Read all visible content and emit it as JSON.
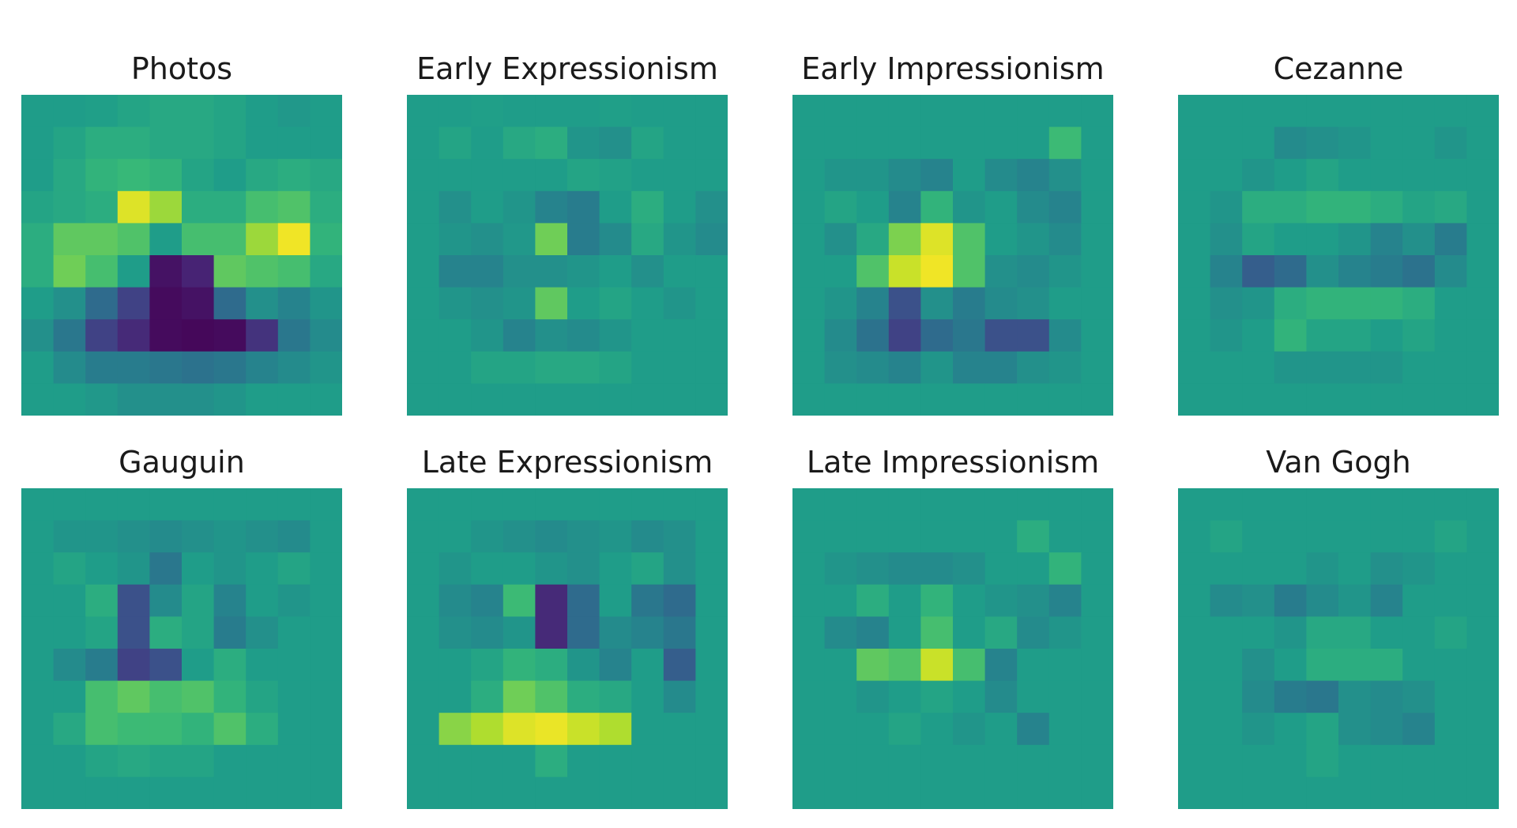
{
  "chart_data": [
    {
      "type": "heatmap",
      "title": "Photos",
      "colormap": "viridis",
      "vmin": 0,
      "vmax": 1,
      "axes": "off",
      "values": [
        [
          0.55,
          0.55,
          0.56,
          0.58,
          0.6,
          0.6,
          0.58,
          0.55,
          0.53,
          0.55
        ],
        [
          0.55,
          0.58,
          0.62,
          0.62,
          0.6,
          0.6,
          0.58,
          0.55,
          0.55,
          0.55
        ],
        [
          0.55,
          0.6,
          0.65,
          0.67,
          0.65,
          0.58,
          0.55,
          0.6,
          0.62,
          0.6
        ],
        [
          0.58,
          0.6,
          0.62,
          0.95,
          0.85,
          0.62,
          0.62,
          0.7,
          0.72,
          0.62
        ],
        [
          0.62,
          0.75,
          0.75,
          0.72,
          0.55,
          0.7,
          0.7,
          0.85,
          0.98,
          0.65
        ],
        [
          0.62,
          0.78,
          0.7,
          0.55,
          0.05,
          0.1,
          0.75,
          0.72,
          0.7,
          0.6
        ],
        [
          0.55,
          0.5,
          0.35,
          0.2,
          0.03,
          0.05,
          0.35,
          0.5,
          0.45,
          0.52
        ],
        [
          0.5,
          0.4,
          0.2,
          0.12,
          0.03,
          0.02,
          0.03,
          0.15,
          0.4,
          0.48
        ],
        [
          0.55,
          0.48,
          0.42,
          0.42,
          0.4,
          0.38,
          0.4,
          0.45,
          0.48,
          0.52
        ],
        [
          0.55,
          0.55,
          0.53,
          0.5,
          0.5,
          0.5,
          0.52,
          0.55,
          0.55,
          0.55
        ]
      ]
    },
    {
      "type": "heatmap",
      "title": "Early Expressionism",
      "colormap": "viridis",
      "vmin": 0,
      "vmax": 1,
      "axes": "off",
      "values": [
        [
          0.55,
          0.55,
          0.56,
          0.55,
          0.55,
          0.55,
          0.56,
          0.55,
          0.55,
          0.55
        ],
        [
          0.55,
          0.58,
          0.55,
          0.6,
          0.62,
          0.52,
          0.5,
          0.58,
          0.55,
          0.55
        ],
        [
          0.55,
          0.55,
          0.55,
          0.55,
          0.55,
          0.58,
          0.57,
          0.55,
          0.55,
          0.55
        ],
        [
          0.55,
          0.5,
          0.55,
          0.52,
          0.45,
          0.42,
          0.55,
          0.62,
          0.55,
          0.5
        ],
        [
          0.55,
          0.52,
          0.5,
          0.53,
          0.78,
          0.42,
          0.48,
          0.6,
          0.52,
          0.48
        ],
        [
          0.55,
          0.45,
          0.45,
          0.5,
          0.5,
          0.52,
          0.55,
          0.5,
          0.55,
          0.55
        ],
        [
          0.55,
          0.52,
          0.5,
          0.52,
          0.75,
          0.55,
          0.58,
          0.55,
          0.52,
          0.55
        ],
        [
          0.55,
          0.55,
          0.52,
          0.45,
          0.5,
          0.48,
          0.52,
          0.55,
          0.55,
          0.55
        ],
        [
          0.55,
          0.55,
          0.58,
          0.58,
          0.6,
          0.6,
          0.58,
          0.55,
          0.55,
          0.55
        ],
        [
          0.55,
          0.55,
          0.55,
          0.55,
          0.55,
          0.55,
          0.55,
          0.55,
          0.55,
          0.55
        ]
      ]
    },
    {
      "type": "heatmap",
      "title": "Early Impressionism",
      "colormap": "viridis",
      "vmin": 0,
      "vmax": 1,
      "axes": "off",
      "values": [
        [
          0.55,
          0.55,
          0.55,
          0.55,
          0.55,
          0.55,
          0.55,
          0.55,
          0.55,
          0.55
        ],
        [
          0.55,
          0.55,
          0.55,
          0.55,
          0.55,
          0.55,
          0.55,
          0.55,
          0.68,
          0.55
        ],
        [
          0.55,
          0.52,
          0.52,
          0.48,
          0.45,
          0.55,
          0.48,
          0.45,
          0.5,
          0.55
        ],
        [
          0.55,
          0.58,
          0.55,
          0.45,
          0.65,
          0.52,
          0.55,
          0.48,
          0.45,
          0.55
        ],
        [
          0.55,
          0.5,
          0.6,
          0.8,
          0.95,
          0.72,
          0.55,
          0.52,
          0.48,
          0.55
        ],
        [
          0.55,
          0.55,
          0.72,
          0.92,
          0.98,
          0.72,
          0.5,
          0.48,
          0.52,
          0.55
        ],
        [
          0.55,
          0.52,
          0.45,
          0.25,
          0.5,
          0.42,
          0.48,
          0.5,
          0.55,
          0.55
        ],
        [
          0.55,
          0.48,
          0.38,
          0.2,
          0.35,
          0.4,
          0.25,
          0.25,
          0.48,
          0.55
        ],
        [
          0.55,
          0.5,
          0.48,
          0.45,
          0.52,
          0.45,
          0.45,
          0.5,
          0.52,
          0.55
        ],
        [
          0.55,
          0.55,
          0.55,
          0.55,
          0.55,
          0.55,
          0.55,
          0.55,
          0.55,
          0.55
        ]
      ]
    },
    {
      "type": "heatmap",
      "title": "Cezanne",
      "colormap": "viridis",
      "vmin": 0,
      "vmax": 1,
      "axes": "off",
      "values": [
        [
          0.55,
          0.55,
          0.55,
          0.55,
          0.55,
          0.55,
          0.55,
          0.55,
          0.55,
          0.55
        ],
        [
          0.55,
          0.55,
          0.55,
          0.48,
          0.5,
          0.52,
          0.55,
          0.55,
          0.52,
          0.55
        ],
        [
          0.55,
          0.55,
          0.52,
          0.55,
          0.58,
          0.55,
          0.55,
          0.55,
          0.55,
          0.55
        ],
        [
          0.55,
          0.52,
          0.62,
          0.62,
          0.65,
          0.65,
          0.62,
          0.58,
          0.6,
          0.55
        ],
        [
          0.55,
          0.5,
          0.58,
          0.55,
          0.55,
          0.52,
          0.45,
          0.5,
          0.42,
          0.55
        ],
        [
          0.55,
          0.45,
          0.3,
          0.35,
          0.5,
          0.45,
          0.42,
          0.38,
          0.48,
          0.55
        ],
        [
          0.55,
          0.5,
          0.52,
          0.62,
          0.65,
          0.65,
          0.65,
          0.62,
          0.55,
          0.55
        ],
        [
          0.55,
          0.52,
          0.55,
          0.65,
          0.58,
          0.58,
          0.55,
          0.58,
          0.55,
          0.55
        ],
        [
          0.55,
          0.55,
          0.55,
          0.52,
          0.52,
          0.52,
          0.52,
          0.55,
          0.55,
          0.55
        ],
        [
          0.55,
          0.55,
          0.55,
          0.55,
          0.55,
          0.55,
          0.55,
          0.55,
          0.55,
          0.55
        ]
      ]
    },
    {
      "type": "heatmap",
      "title": "Gauguin",
      "colormap": "viridis",
      "vmin": 0,
      "vmax": 1,
      "axes": "off",
      "values": [
        [
          0.55,
          0.55,
          0.55,
          0.55,
          0.55,
          0.55,
          0.55,
          0.55,
          0.55,
          0.55
        ],
        [
          0.55,
          0.52,
          0.52,
          0.5,
          0.48,
          0.5,
          0.52,
          0.5,
          0.48,
          0.55
        ],
        [
          0.55,
          0.58,
          0.55,
          0.52,
          0.4,
          0.55,
          0.52,
          0.55,
          0.58,
          0.55
        ],
        [
          0.55,
          0.55,
          0.62,
          0.25,
          0.48,
          0.58,
          0.45,
          0.55,
          0.52,
          0.55
        ],
        [
          0.55,
          0.55,
          0.58,
          0.25,
          0.62,
          0.58,
          0.42,
          0.5,
          0.55,
          0.55
        ],
        [
          0.55,
          0.48,
          0.42,
          0.2,
          0.25,
          0.55,
          0.62,
          0.55,
          0.55,
          0.55
        ],
        [
          0.55,
          0.55,
          0.7,
          0.75,
          0.7,
          0.72,
          0.65,
          0.58,
          0.55,
          0.55
        ],
        [
          0.55,
          0.6,
          0.7,
          0.68,
          0.68,
          0.65,
          0.72,
          0.62,
          0.55,
          0.55
        ],
        [
          0.55,
          0.55,
          0.58,
          0.6,
          0.58,
          0.58,
          0.55,
          0.55,
          0.55,
          0.55
        ],
        [
          0.55,
          0.55,
          0.55,
          0.55,
          0.55,
          0.55,
          0.55,
          0.55,
          0.55,
          0.55
        ]
      ]
    },
    {
      "type": "heatmap",
      "title": "Late Expressionism",
      "colormap": "viridis",
      "vmin": 0,
      "vmax": 1,
      "axes": "off",
      "values": [
        [
          0.55,
          0.55,
          0.55,
          0.55,
          0.55,
          0.55,
          0.55,
          0.55,
          0.55,
          0.55
        ],
        [
          0.55,
          0.55,
          0.52,
          0.5,
          0.48,
          0.5,
          0.52,
          0.48,
          0.5,
          0.55
        ],
        [
          0.55,
          0.52,
          0.55,
          0.55,
          0.52,
          0.5,
          0.55,
          0.58,
          0.5,
          0.55
        ],
        [
          0.55,
          0.48,
          0.45,
          0.68,
          0.12,
          0.35,
          0.55,
          0.4,
          0.35,
          0.55
        ],
        [
          0.55,
          0.5,
          0.48,
          0.52,
          0.12,
          0.35,
          0.48,
          0.45,
          0.4,
          0.55
        ],
        [
          0.55,
          0.55,
          0.58,
          0.65,
          0.62,
          0.52,
          0.45,
          0.55,
          0.3,
          0.55
        ],
        [
          0.55,
          0.55,
          0.62,
          0.78,
          0.72,
          0.62,
          0.6,
          0.55,
          0.48,
          0.55
        ],
        [
          0.55,
          0.82,
          0.88,
          0.95,
          0.97,
          0.92,
          0.88,
          0.55,
          0.55,
          0.55
        ],
        [
          0.55,
          0.55,
          0.55,
          0.55,
          0.62,
          0.55,
          0.55,
          0.55,
          0.55,
          0.55
        ],
        [
          0.55,
          0.55,
          0.55,
          0.55,
          0.55,
          0.55,
          0.55,
          0.55,
          0.55,
          0.55
        ]
      ]
    },
    {
      "type": "heatmap",
      "title": "Late Impressionism",
      "colormap": "viridis",
      "vmin": 0,
      "vmax": 1,
      "axes": "off",
      "values": [
        [
          0.55,
          0.55,
          0.55,
          0.55,
          0.55,
          0.55,
          0.55,
          0.55,
          0.55,
          0.55
        ],
        [
          0.55,
          0.55,
          0.55,
          0.55,
          0.55,
          0.55,
          0.55,
          0.62,
          0.55,
          0.55
        ],
        [
          0.55,
          0.52,
          0.5,
          0.48,
          0.48,
          0.5,
          0.55,
          0.55,
          0.65,
          0.55
        ],
        [
          0.55,
          0.55,
          0.62,
          0.55,
          0.65,
          0.55,
          0.52,
          0.5,
          0.45,
          0.55
        ],
        [
          0.55,
          0.48,
          0.45,
          0.55,
          0.7,
          0.55,
          0.6,
          0.48,
          0.52,
          0.55
        ],
        [
          0.55,
          0.55,
          0.75,
          0.72,
          0.92,
          0.7,
          0.45,
          0.55,
          0.55,
          0.55
        ],
        [
          0.55,
          0.55,
          0.52,
          0.55,
          0.58,
          0.55,
          0.48,
          0.55,
          0.55,
          0.55
        ],
        [
          0.55,
          0.55,
          0.55,
          0.58,
          0.55,
          0.52,
          0.55,
          0.45,
          0.55,
          0.55
        ],
        [
          0.55,
          0.55,
          0.55,
          0.55,
          0.55,
          0.55,
          0.55,
          0.55,
          0.55,
          0.55
        ],
        [
          0.55,
          0.55,
          0.55,
          0.55,
          0.55,
          0.55,
          0.55,
          0.55,
          0.55,
          0.55
        ]
      ]
    },
    {
      "type": "heatmap",
      "title": "Van Gogh",
      "colormap": "viridis",
      "vmin": 0,
      "vmax": 1,
      "axes": "off",
      "values": [
        [
          0.55,
          0.55,
          0.55,
          0.55,
          0.55,
          0.55,
          0.55,
          0.55,
          0.55,
          0.55
        ],
        [
          0.55,
          0.58,
          0.55,
          0.55,
          0.55,
          0.55,
          0.55,
          0.55,
          0.58,
          0.55
        ],
        [
          0.55,
          0.55,
          0.55,
          0.55,
          0.52,
          0.55,
          0.5,
          0.52,
          0.55,
          0.55
        ],
        [
          0.55,
          0.48,
          0.5,
          0.42,
          0.48,
          0.52,
          0.45,
          0.55,
          0.55,
          0.55
        ],
        [
          0.55,
          0.55,
          0.55,
          0.52,
          0.6,
          0.6,
          0.55,
          0.55,
          0.58,
          0.55
        ],
        [
          0.55,
          0.55,
          0.5,
          0.55,
          0.62,
          0.62,
          0.62,
          0.55,
          0.55,
          0.55
        ],
        [
          0.55,
          0.55,
          0.48,
          0.42,
          0.4,
          0.5,
          0.48,
          0.5,
          0.55,
          0.55
        ],
        [
          0.55,
          0.55,
          0.52,
          0.55,
          0.58,
          0.5,
          0.48,
          0.45,
          0.55,
          0.55
        ],
        [
          0.55,
          0.55,
          0.55,
          0.55,
          0.58,
          0.55,
          0.55,
          0.55,
          0.55,
          0.55
        ],
        [
          0.55,
          0.55,
          0.55,
          0.55,
          0.55,
          0.55,
          0.55,
          0.55,
          0.55,
          0.55
        ]
      ]
    }
  ]
}
